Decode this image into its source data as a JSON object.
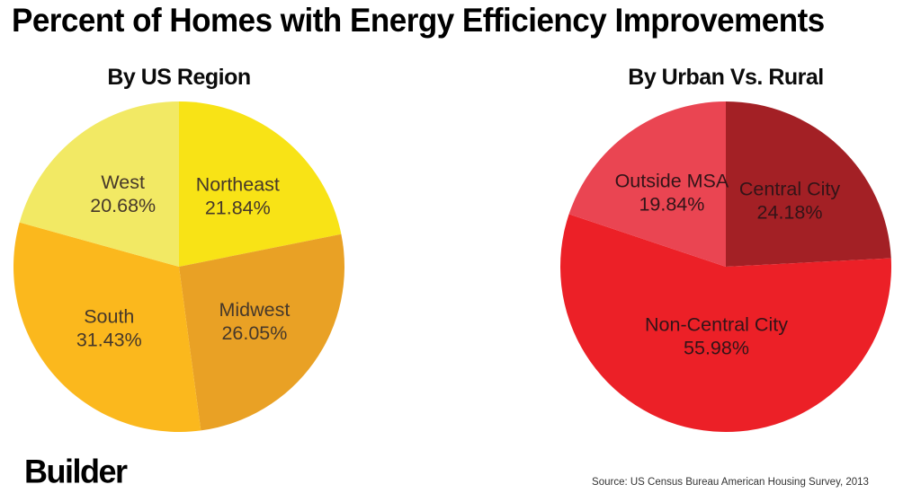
{
  "page": {
    "title": "Percent of Homes with Energy Efficiency Improvements",
    "logo_text": "Builder",
    "source_text": "Source: US Census Bureau American Housing Survey, 2013"
  },
  "chart_data": [
    {
      "type": "pie",
      "title": "By US Region",
      "start_angle_deg": 0,
      "direction": "clockwise",
      "label_color": "#46382a",
      "slices": [
        {
          "label": "Northeast",
          "value": 21.84,
          "display": "21.84%",
          "color": "#F8E316",
          "label_r": 0.56
        },
        {
          "label": "Midwest",
          "value": 26.05,
          "display": "26.05%",
          "color": "#E9A125",
          "label_r": 0.56
        },
        {
          "label": "South",
          "value": 31.43,
          "display": "31.43%",
          "color": "#FBB81D",
          "label_r": 0.56
        },
        {
          "label": "West",
          "value": 20.68,
          "display": "20.68%",
          "color": "#F2E964",
          "label_r": 0.56
        }
      ]
    },
    {
      "type": "pie",
      "title": "By Urban Vs. Rural",
      "start_angle_deg": 0,
      "direction": "clockwise",
      "label_color": "#331418",
      "slices": [
        {
          "label": "Central City",
          "value": 24.18,
          "display": "24.18%",
          "color": "#A32025",
          "label_r": 0.56
        },
        {
          "label": "Non-Central City",
          "value": 55.98,
          "display": "55.98%",
          "color": "#EC2027",
          "label_r": 0.42
        },
        {
          "label": "Outside MSA",
          "value": 19.84,
          "display": "19.84%",
          "color": "#EA4552",
          "label_r": 0.56
        }
      ]
    }
  ]
}
